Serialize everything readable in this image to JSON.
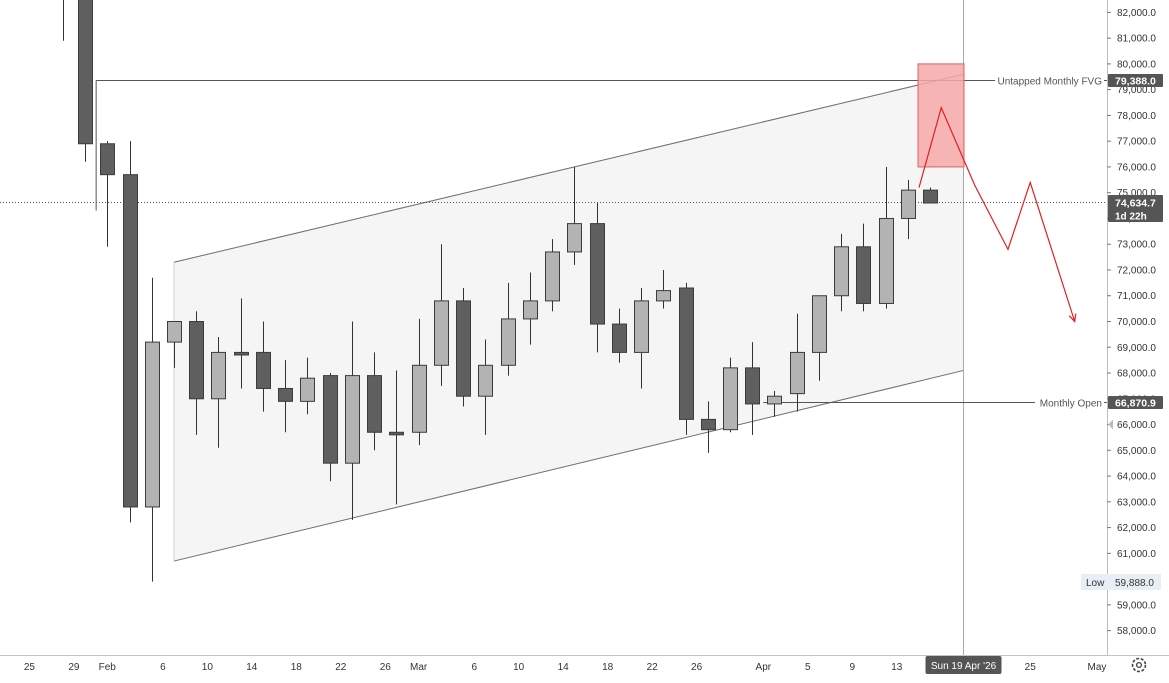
{
  "chart_data": {
    "type": "candlestick",
    "title": "",
    "ylim": [
      57500,
      82500
    ],
    "y_ticks": [
      58000,
      59000,
      60000,
      61000,
      62000,
      63000,
      64000,
      65000,
      66000,
      67000,
      68000,
      69000,
      70000,
      71000,
      72000,
      73000,
      74000,
      75000,
      76000,
      77000,
      78000,
      79000,
      80000,
      81000,
      82000
    ],
    "y_tick_labels": [
      "58,000.0",
      "59,000.0",
      "60,000.0",
      "61,000.0",
      "62,000.0",
      "63,000.0",
      "64,000.0",
      "65,000.0",
      "66,000.0",
      "67,000.0",
      "68,000.0",
      "69,000.0",
      "70,000.0",
      "71,000.0",
      "72,000.0",
      "73,000.0",
      "74,000.0",
      "75,000.0",
      "76,000.0",
      "77,000.0",
      "78,000.0",
      "79,000.0",
      "80,000.0",
      "81,000.0",
      "82,000.0"
    ],
    "x_ticks": [
      {
        "label": "25",
        "day": -8
      },
      {
        "label": "29",
        "day": -4
      },
      {
        "label": "Feb",
        "day": -1
      },
      {
        "label": "6",
        "day": 4
      },
      {
        "label": "10",
        "day": 8
      },
      {
        "label": "14",
        "day": 12
      },
      {
        "label": "18",
        "day": 16
      },
      {
        "label": "22",
        "day": 20
      },
      {
        "label": "26",
        "day": 24
      },
      {
        "label": "Mar",
        "day": 27
      },
      {
        "label": "6",
        "day": 32
      },
      {
        "label": "10",
        "day": 36
      },
      {
        "label": "14",
        "day": 40
      },
      {
        "label": "18",
        "day": 44
      },
      {
        "label": "22",
        "day": 48
      },
      {
        "label": "26",
        "day": 52
      },
      {
        "label": "Apr",
        "day": 58
      },
      {
        "label": "5",
        "day": 62
      },
      {
        "label": "9",
        "day": 66
      },
      {
        "label": "13",
        "day": 70
      },
      {
        "label": "25",
        "day": 82
      },
      {
        "label": "May",
        "day": 88
      }
    ],
    "candles": [
      {
        "day": -5,
        "open": 86000,
        "high": 86500,
        "low": 80900,
        "close": 85500
      },
      {
        "day": -3,
        "open": 85000,
        "high": 85500,
        "low": 76200,
        "close": 76900
      },
      {
        "day": -1,
        "open": 76900,
        "high": 77000,
        "low": 72900,
        "close": 75700
      },
      {
        "day": 1,
        "open": 75700,
        "high": 77000,
        "low": 62200,
        "close": 62800
      },
      {
        "day": 3,
        "open": 62800,
        "high": 71700,
        "low": 59900,
        "close": 69200
      },
      {
        "day": 5,
        "open": 69200,
        "high": 70000,
        "low": 68200,
        "close": 70000
      },
      {
        "day": 7,
        "open": 70000,
        "high": 70400,
        "low": 65600,
        "close": 67000
      },
      {
        "day": 9,
        "open": 67000,
        "high": 69400,
        "low": 65100,
        "close": 68800
      },
      {
        "day": 11,
        "open": 68800,
        "high": 70900,
        "low": 67400,
        "close": 68700
      },
      {
        "day": 13,
        "open": 68800,
        "high": 70000,
        "low": 66500,
        "close": 67400
      },
      {
        "day": 15,
        "open": 67400,
        "high": 68500,
        "low": 65700,
        "close": 66900
      },
      {
        "day": 17,
        "open": 66900,
        "high": 68600,
        "low": 66400,
        "close": 67800
      },
      {
        "day": 19,
        "open": 67900,
        "high": 68000,
        "low": 63800,
        "close": 64500
      },
      {
        "day": 21,
        "open": 64500,
        "high": 70000,
        "low": 62300,
        "close": 67900
      },
      {
        "day": 23,
        "open": 67900,
        "high": 68800,
        "low": 65000,
        "close": 65700
      },
      {
        "day": 25,
        "open": 65700,
        "high": 68100,
        "low": 62900,
        "close": 65600
      },
      {
        "day": 27,
        "open": 65700,
        "high": 70100,
        "low": 65200,
        "close": 68300
      },
      {
        "day": 29,
        "open": 68300,
        "high": 73000,
        "low": 67500,
        "close": 70800
      },
      {
        "day": 31,
        "open": 70800,
        "high": 71300,
        "low": 66700,
        "close": 67100
      },
      {
        "day": 33,
        "open": 67100,
        "high": 69300,
        "low": 65600,
        "close": 68300
      },
      {
        "day": 35,
        "open": 68300,
        "high": 71500,
        "low": 67900,
        "close": 70100
      },
      {
        "day": 37,
        "open": 70100,
        "high": 71900,
        "low": 69100,
        "close": 70800
      },
      {
        "day": 39,
        "open": 70800,
        "high": 73200,
        "low": 70400,
        "close": 72700
      },
      {
        "day": 41,
        "open": 72700,
        "high": 76000,
        "low": 72200,
        "close": 73800
      },
      {
        "day": 43,
        "open": 73800,
        "high": 74600,
        "low": 68800,
        "close": 69900
      },
      {
        "day": 45,
        "open": 69900,
        "high": 70500,
        "low": 68400,
        "close": 68800
      },
      {
        "day": 47,
        "open": 68800,
        "high": 71300,
        "low": 67400,
        "close": 70800
      },
      {
        "day": 49,
        "open": 70800,
        "high": 72000,
        "low": 70500,
        "close": 71200
      },
      {
        "day": 51,
        "open": 71300,
        "high": 71500,
        "low": 65600,
        "close": 66200
      },
      {
        "day": 53,
        "open": 66200,
        "high": 66900,
        "low": 64900,
        "close": 65800
      },
      {
        "day": 55,
        "open": 65800,
        "high": 68600,
        "low": 65700,
        "close": 68200
      },
      {
        "day": 57,
        "open": 68200,
        "high": 69200,
        "low": 65600,
        "close": 66800
      },
      {
        "day": 59,
        "open": 66800,
        "high": 67300,
        "low": 66300,
        "close": 67100
      },
      {
        "day": 61,
        "open": 67200,
        "high": 70300,
        "low": 66500,
        "close": 68800
      },
      {
        "day": 63,
        "open": 68800,
        "high": 71000,
        "low": 67700,
        "close": 71000
      },
      {
        "day": 65,
        "open": 71000,
        "high": 73400,
        "low": 70400,
        "close": 72900
      },
      {
        "day": 67,
        "open": 72900,
        "high": 73800,
        "low": 70400,
        "close": 70700
      },
      {
        "day": 69,
        "open": 70700,
        "high": 76000,
        "low": 70500,
        "close": 74000
      },
      {
        "day": 71,
        "open": 74000,
        "high": 75500,
        "low": 73200,
        "close": 75100
      },
      {
        "day": 73,
        "open": 75100,
        "high": 75200,
        "low": 74600,
        "close": 74600
      }
    ],
    "channel": {
      "upper": [
        {
          "day": 5,
          "value": 72300
        },
        {
          "day": 76,
          "value": 79600
        }
      ],
      "lower": [
        {
          "day": 5,
          "value": 60700
        },
        {
          "day": 76,
          "value": 68100
        }
      ]
    },
    "fvg_box": {
      "day_start": 72,
      "day_end": 76,
      "top": 80000,
      "bottom": 76000
    },
    "projection": [
      {
        "day": 72,
        "value": 75200
      },
      {
        "day": 74,
        "value": 78300
      },
      {
        "day": 77,
        "value": 75300
      },
      {
        "day": 80,
        "value": 72800
      },
      {
        "day": 82,
        "value": 75400
      },
      {
        "day": 86,
        "value": 70000
      }
    ],
    "levels": [
      {
        "name": "Untapped Monthly FVG",
        "value": 79388.0,
        "price_label": "79,388.0",
        "day_start": -2
      },
      {
        "name": "Monthly Open",
        "value": 66870.9,
        "price_label": "66,870.9",
        "day_start": 58
      }
    ],
    "current_price": {
      "value": 74634.7,
      "label": "74,634.7",
      "countdown": "1d 22h"
    },
    "low_marker": {
      "name": "Low",
      "value": 59888.0,
      "label": "59,888.0"
    },
    "crosshair": {
      "day": 76,
      "label": "Sun 19 Apr '26"
    },
    "colors": {
      "bear_candle": "#5f5f5f",
      "bull_candle": "#b3b3b3",
      "candle_border": "#3c3c3c",
      "channel_fill": "#f5f5f5",
      "channel_line": "#6d6d6d",
      "fvg_fill": "#f7a8a8",
      "fvg_border": "#e06060",
      "projection": "#e02020",
      "label_bg": "#555555",
      "low_bg": "#e8eef5",
      "axis_text": "#333333"
    }
  },
  "ui": {
    "settings_icon": "gear-icon"
  }
}
